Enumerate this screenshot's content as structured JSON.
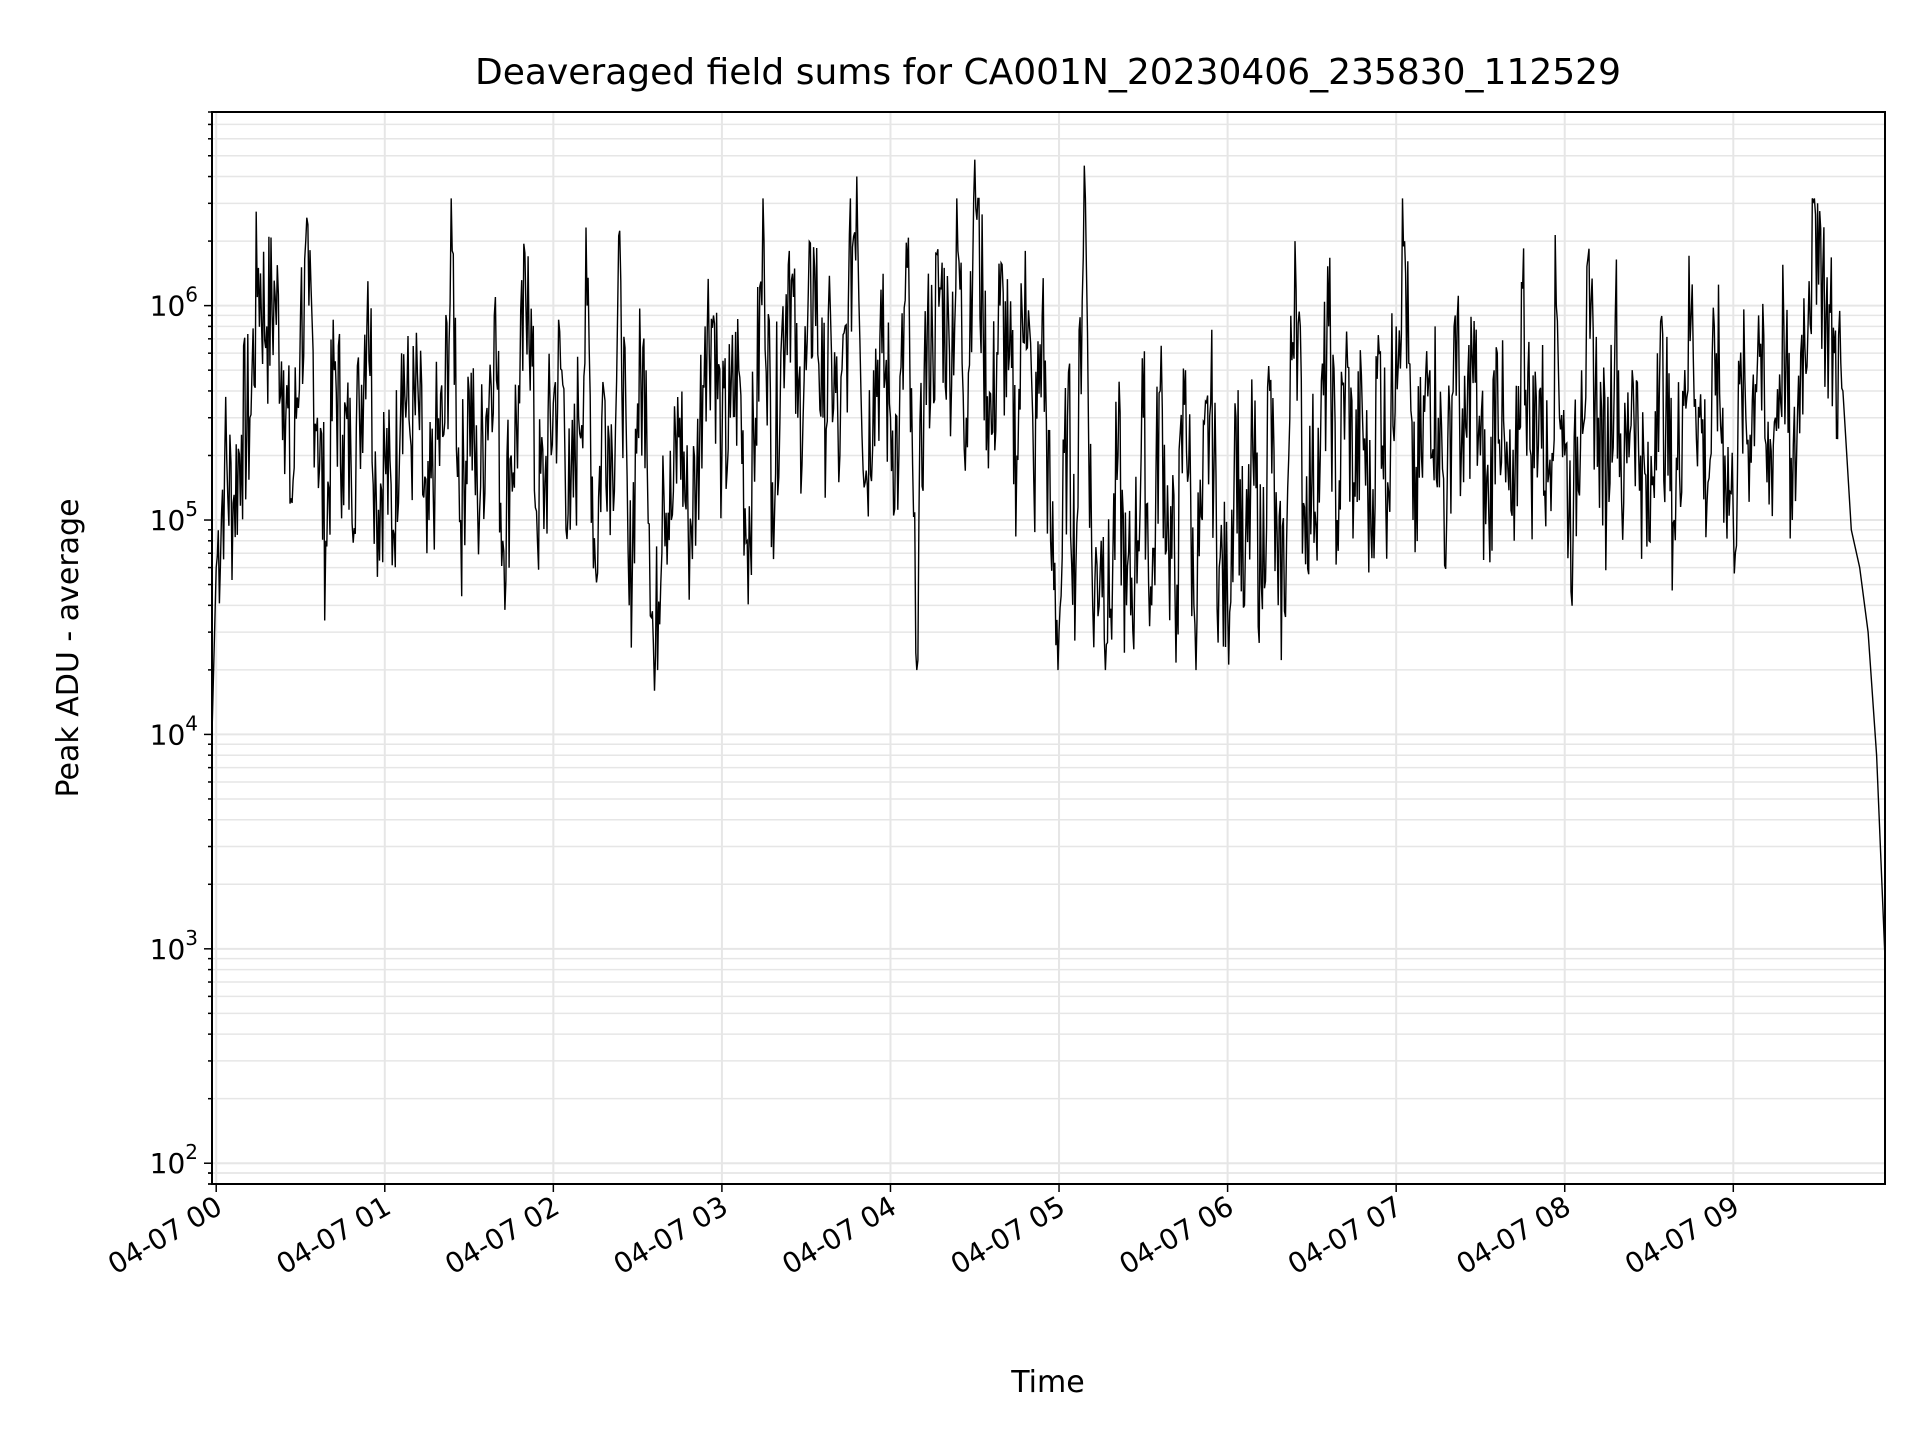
{
  "chart_data": {
    "type": "line",
    "title": "Deaveraged field sums for CA001N_20230406_235830_112529",
    "xlabel": "Time",
    "ylabel": "Peak ADU - average",
    "y_scale": "log",
    "ylim": [
      80,
      8000000
    ],
    "xlim": [
      "2023-04-06 23:58:30",
      "2023-04-07 09:54:00"
    ],
    "grid": true,
    "line_color": "#000000",
    "grid_color": "#e6e6e6",
    "x_ticks": [
      {
        "label": "04-07 00",
        "time": "2023-04-07 00:00"
      },
      {
        "label": "04-07 01",
        "time": "2023-04-07 01:00"
      },
      {
        "label": "04-07 02",
        "time": "2023-04-07 02:00"
      },
      {
        "label": "04-07 03",
        "time": "2023-04-07 03:00"
      },
      {
        "label": "04-07 04",
        "time": "2023-04-07 04:00"
      },
      {
        "label": "04-07 05",
        "time": "2023-04-07 05:00"
      },
      {
        "label": "04-07 06",
        "time": "2023-04-07 06:00"
      },
      {
        "label": "04-07 07",
        "time": "2023-04-07 07:00"
      },
      {
        "label": "04-07 08",
        "time": "2023-04-07 08:00"
      },
      {
        "label": "04-07 09",
        "time": "2023-04-07 09:00"
      }
    ],
    "y_ticks": [
      {
        "base": "10",
        "exp": "2",
        "value": 100
      },
      {
        "base": "10",
        "exp": "3",
        "value": 1000
      },
      {
        "base": "10",
        "exp": "4",
        "value": 10000
      },
      {
        "base": "10",
        "exp": "5",
        "value": 100000
      },
      {
        "base": "10",
        "exp": "6",
        "value": 1000000
      }
    ],
    "series": [
      {
        "x": [
          "2023-04-06 23:58:30",
          "2023-04-07 00:00",
          "2023-04-07 00:03",
          "2023-04-07 00:06",
          "2023-04-07 00:09",
          "2023-04-07 00:12",
          "2023-04-07 00:15",
          "2023-04-07 00:18",
          "2023-04-07 00:21",
          "2023-04-07 00:24",
          "2023-04-07 00:27",
          "2023-04-07 00:30",
          "2023-04-07 00:33",
          "2023-04-07 00:36",
          "2023-04-07 00:39",
          "2023-04-07 00:42",
          "2023-04-07 00:45",
          "2023-04-07 00:48",
          "2023-04-07 00:51",
          "2023-04-07 00:54",
          "2023-04-07 00:57",
          "2023-04-07 01:00",
          "2023-04-07 01:03",
          "2023-04-07 01:06",
          "2023-04-07 01:09",
          "2023-04-07 01:12",
          "2023-04-07 01:15",
          "2023-04-07 01:18",
          "2023-04-07 01:21",
          "2023-04-07 01:24",
          "2023-04-07 01:27",
          "2023-04-07 01:30",
          "2023-04-07 01:33",
          "2023-04-07 01:36",
          "2023-04-07 01:39",
          "2023-04-07 01:42",
          "2023-04-07 01:45",
          "2023-04-07 01:48",
          "2023-04-07 01:51",
          "2023-04-07 01:54",
          "2023-04-07 01:57",
          "2023-04-07 02:00",
          "2023-04-07 02:03",
          "2023-04-07 02:06",
          "2023-04-07 02:09",
          "2023-04-07 02:12",
          "2023-04-07 02:15",
          "2023-04-07 02:18",
          "2023-04-07 02:21",
          "2023-04-07 02:24",
          "2023-04-07 02:27",
          "2023-04-07 02:30",
          "2023-04-07 02:33",
          "2023-04-07 02:36",
          "2023-04-07 02:39",
          "2023-04-07 02:42",
          "2023-04-07 02:45",
          "2023-04-07 02:48",
          "2023-04-07 02:51",
          "2023-04-07 02:54",
          "2023-04-07 02:57",
          "2023-04-07 03:00",
          "2023-04-07 03:03",
          "2023-04-07 03:06",
          "2023-04-07 03:09",
          "2023-04-07 03:12",
          "2023-04-07 03:15",
          "2023-04-07 03:18",
          "2023-04-07 03:21",
          "2023-04-07 03:24",
          "2023-04-07 03:27",
          "2023-04-07 03:30",
          "2023-04-07 03:33",
          "2023-04-07 03:36",
          "2023-04-07 03:39",
          "2023-04-07 03:42",
          "2023-04-07 03:45",
          "2023-04-07 03:48",
          "2023-04-07 03:51",
          "2023-04-07 03:54",
          "2023-04-07 03:57",
          "2023-04-07 04:00",
          "2023-04-07 04:03",
          "2023-04-07 04:06",
          "2023-04-07 04:09",
          "2023-04-07 04:12",
          "2023-04-07 04:15",
          "2023-04-07 04:18",
          "2023-04-07 04:21",
          "2023-04-07 04:24",
          "2023-04-07 04:27",
          "2023-04-07 04:30",
          "2023-04-07 04:33",
          "2023-04-07 04:36",
          "2023-04-07 04:39",
          "2023-04-07 04:42",
          "2023-04-07 04:45",
          "2023-04-07 04:48",
          "2023-04-07 04:51",
          "2023-04-07 04:54",
          "2023-04-07 04:57",
          "2023-04-07 05:00",
          "2023-04-07 05:03",
          "2023-04-07 05:06",
          "2023-04-07 05:09",
          "2023-04-07 05:12",
          "2023-04-07 05:15",
          "2023-04-07 05:18",
          "2023-04-07 05:21",
          "2023-04-07 05:24",
          "2023-04-07 05:27",
          "2023-04-07 05:30",
          "2023-04-07 05:33",
          "2023-04-07 05:36",
          "2023-04-07 05:39",
          "2023-04-07 05:42",
          "2023-04-07 05:45",
          "2023-04-07 05:48",
          "2023-04-07 05:51",
          "2023-04-07 05:54",
          "2023-04-07 05:57",
          "2023-04-07 06:00",
          "2023-04-07 06:03",
          "2023-04-07 06:06",
          "2023-04-07 06:09",
          "2023-04-07 06:12",
          "2023-04-07 06:15",
          "2023-04-07 06:18",
          "2023-04-07 06:21",
          "2023-04-07 06:24",
          "2023-04-07 06:27",
          "2023-04-07 06:30",
          "2023-04-07 06:33",
          "2023-04-07 06:36",
          "2023-04-07 06:39",
          "2023-04-07 06:42",
          "2023-04-07 06:45",
          "2023-04-07 06:48",
          "2023-04-07 06:51",
          "2023-04-07 06:54",
          "2023-04-07 06:57",
          "2023-04-07 07:00",
          "2023-04-07 07:03",
          "2023-04-07 07:06",
          "2023-04-07 07:09",
          "2023-04-07 07:12",
          "2023-04-07 07:15",
          "2023-04-07 07:18",
          "2023-04-07 07:21",
          "2023-04-07 07:24",
          "2023-04-07 07:27",
          "2023-04-07 07:30",
          "2023-04-07 07:33",
          "2023-04-07 07:36",
          "2023-04-07 07:39",
          "2023-04-07 07:42",
          "2023-04-07 07:45",
          "2023-04-07 07:48",
          "2023-04-07 07:51",
          "2023-04-07 07:54",
          "2023-04-07 07:57",
          "2023-04-07 08:00",
          "2023-04-07 08:03",
          "2023-04-07 08:06",
          "2023-04-07 08:09",
          "2023-04-07 08:12",
          "2023-04-07 08:15",
          "2023-04-07 08:18",
          "2023-04-07 08:21",
          "2023-04-07 08:24",
          "2023-04-07 08:27",
          "2023-04-07 08:30",
          "2023-04-07 08:33",
          "2023-04-07 08:36",
          "2023-04-07 08:39",
          "2023-04-07 08:42",
          "2023-04-07 08:45",
          "2023-04-07 08:48",
          "2023-04-07 08:51",
          "2023-04-07 08:54",
          "2023-04-07 08:57",
          "2023-04-07 09:00",
          "2023-04-07 09:03",
          "2023-04-07 09:06",
          "2023-04-07 09:09",
          "2023-04-07 09:12",
          "2023-04-07 09:15",
          "2023-04-07 09:18",
          "2023-04-07 09:21",
          "2023-04-07 09:24",
          "2023-04-07 09:27",
          "2023-04-07 09:30",
          "2023-04-07 09:33",
          "2023-04-07 09:36",
          "2023-04-07 09:39",
          "2023-04-07 09:42",
          "2023-04-07 09:45",
          "2023-04-07 09:48",
          "2023-04-07 09:51",
          "2023-04-07 09:54"
        ],
        "y": [
          10000,
          60000,
          180000,
          120000,
          250000,
          300000,
          1500000,
          800000,
          1100000,
          500000,
          120000,
          900000,
          1000000,
          300000,
          80000,
          500000,
          250000,
          180000,
          300000,
          1300000,
          120000,
          200000,
          90000,
          600000,
          250000,
          350000,
          70000,
          200000,
          250000,
          1800000,
          100000,
          400000,
          120000,
          300000,
          900000,
          80000,
          200000,
          350000,
          1700000,
          110000,
          150000,
          350000,
          500000,
          90000,
          300000,
          1000000,
          60000,
          400000,
          200000,
          1300000,
          40000,
          350000,
          500000,
          16000,
          200000,
          100000,
          300000,
          90000,
          150000,
          800000,
          900000,
          200000,
          300000,
          500000,
          80000,
          300000,
          2000000,
          150000,
          600000,
          1800000,
          300000,
          500000,
          1500000,
          300000,
          600000,
          200000,
          1000000,
          4000000,
          150000,
          500000,
          600000,
          300000,
          200000,
          1500000,
          24000,
          500000,
          700000,
          1200000,
          600000,
          1800000,
          300000,
          4800000,
          800000,
          250000,
          1000000,
          500000,
          200000,
          1800000,
          150000,
          900000,
          80000,
          30000,
          300000,
          60000,
          4500000,
          40000,
          80000,
          35000,
          200000,
          40000,
          60000,
          300000,
          40000,
          400000,
          80000,
          50000,
          500000,
          40000,
          100000,
          350000,
          60000,
          40000,
          300000,
          40000,
          200000,
          50000,
          400000,
          40000,
          80000,
          2000000,
          120000,
          150000,
          200000,
          800000,
          100000,
          500000,
          150000,
          300000,
          90000,
          600000,
          150000,
          800000,
          2000000,
          100000,
          200000,
          500000,
          300000,
          100000,
          900000,
          150000,
          600000,
          200000,
          100000,
          600000,
          150000,
          80000,
          1200000,
          200000,
          400000,
          150000,
          1000000,
          200000,
          90000,
          500000,
          700000,
          300000,
          150000,
          900000,
          120000,
          500000,
          200000,
          80000,
          600000,
          300000,
          100000,
          400000,
          900000,
          300000,
          150000,
          600000,
          200000,
          100000,
          400000,
          250000,
          900000,
          150000,
          300000,
          800000,
          100000,
          600000,
          1300000,
          3000000,
          900000,
          600000,
          400000,
          90000,
          60000,
          30000,
          8000,
          900
        ]
      }
    ]
  }
}
